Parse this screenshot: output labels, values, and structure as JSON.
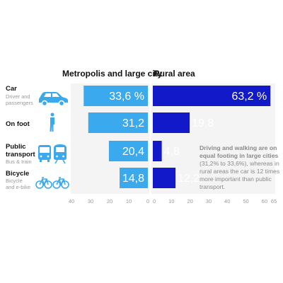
{
  "chart_data": {
    "type": "bar",
    "categories": [
      {
        "label": "Car",
        "sublabel": "Driver and passengers",
        "icon": "car-icon"
      },
      {
        "label": "On foot",
        "sublabel": "",
        "icon": "pedestrian-icon"
      },
      {
        "label": "Public transport",
        "sublabel": "Bus & train",
        "icon": "bus-train-icon"
      },
      {
        "label": "Bicycle",
        "sublabel": "Bicycle and e-bike",
        "icon": "bicycle-icon"
      }
    ],
    "series": [
      {
        "name": "Metropolis and large city",
        "values": [
          33.6,
          31.2,
          20.4,
          14.8
        ],
        "value_labels": [
          "33,6 %",
          "31,2",
          "20,4",
          "14,8"
        ],
        "color": "#3aa9ee"
      },
      {
        "name": "Rural area",
        "values": [
          63.2,
          19.8,
          4.8,
          12.2
        ],
        "value_labels": [
          "63,2 %",
          "19,8",
          "4,8",
          "12,2"
        ],
        "color": "#1119c8"
      }
    ],
    "left_axis": {
      "range": [
        0,
        40
      ],
      "ticks": [
        "40",
        "30",
        "20",
        "10",
        "0"
      ]
    },
    "right_axis": {
      "range": [
        0,
        65
      ],
      "ticks": [
        "0",
        "10",
        "20",
        "30",
        "40",
        "50",
        "60",
        "65"
      ]
    },
    "annotation": {
      "bold_lines": [
        "Driving and walking are on",
        "equal footing in large cities"
      ],
      "lines": [
        "(31,2% to 33,6%), whereas in",
        "rural areas the car is 12 times",
        "more important than public",
        "transport."
      ]
    }
  }
}
